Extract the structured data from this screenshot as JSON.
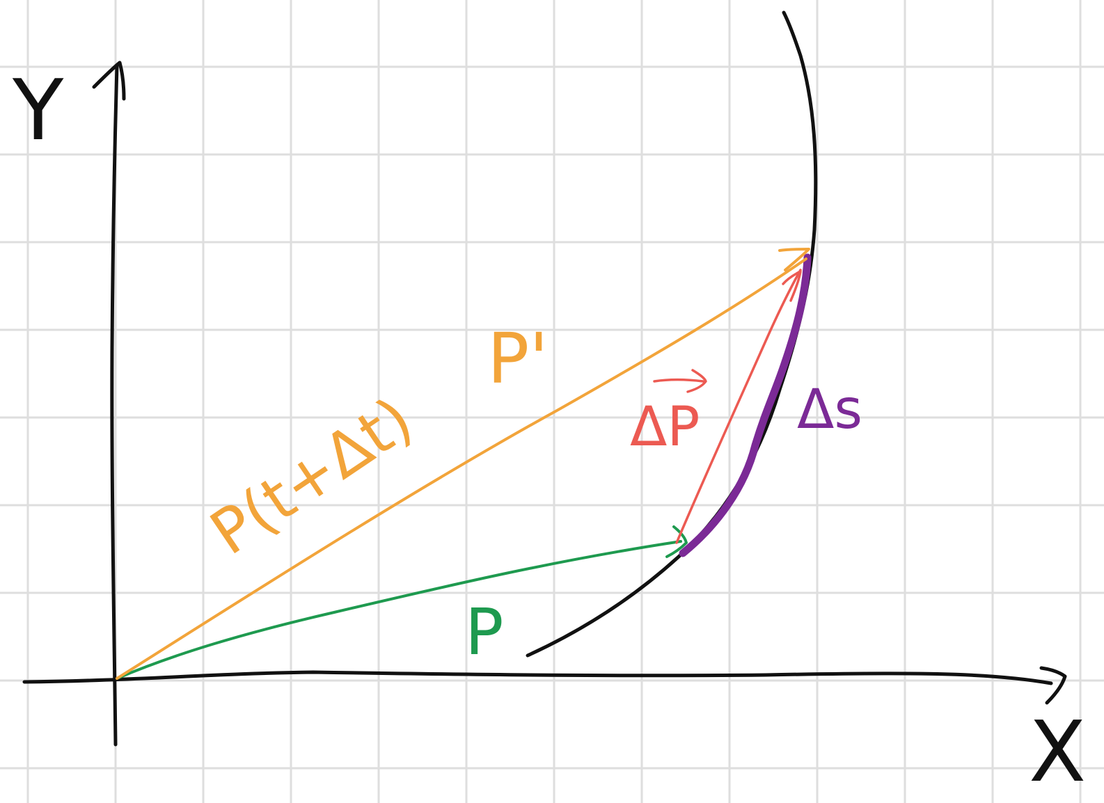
{
  "colors": {
    "background": "#ffffff",
    "grid": "#dedede",
    "axes": "#111111",
    "curve": "#111111",
    "vector_p": "#1e9a4f",
    "vector_p_prime": "#f2a43a",
    "delta_p": "#ec5a52",
    "delta_s": "#7b2a96"
  },
  "labels": {
    "y_axis": "Y",
    "x_axis": "X",
    "p": "P",
    "p_prime": "P'",
    "p_t_dt": "P(t+Δt)",
    "delta_p": "ΔP",
    "delta_s": "Δs"
  },
  "icons": {
    "y_arrow": "arrow-up-icon",
    "x_arrow": "arrow-right-icon"
  }
}
